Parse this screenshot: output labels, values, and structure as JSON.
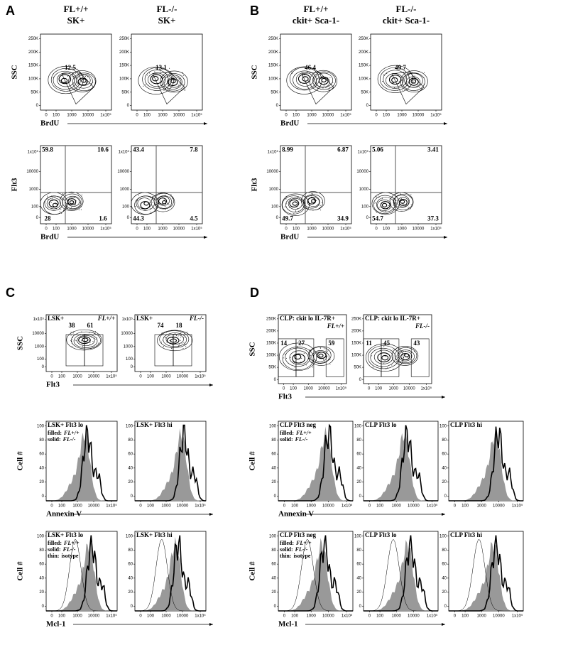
{
  "panels": [
    {
      "label": "A",
      "column_titles": [
        [
          "FL+/+",
          "SK+"
        ],
        [
          "FL-/-",
          "SK+"
        ]
      ],
      "rows": [
        {
          "y_label": "SSC",
          "x_label": "BrdU",
          "yticks": [
            "0",
            "50K",
            "100K",
            "150K",
            "200K",
            "250K"
          ],
          "xticks": [
            "0",
            "100",
            "1000",
            "10000",
            "1x10⁵"
          ],
          "plots": [
            {
              "gates": [
                12.5
              ]
            },
            {
              "gates": [
                13.1
              ]
            }
          ]
        },
        {
          "y_label": "Flt3",
          "x_label": "BrdU",
          "yticks": [
            "0",
            "100",
            "1000",
            "10000",
            "1x10⁵"
          ],
          "xticks": [
            "0",
            "100",
            "1000",
            "10000",
            "1x10⁵"
          ],
          "plots": [
            {
              "gates": [
                59.8,
                10.6,
                28,
                1.6
              ]
            },
            {
              "gates": [
                43.4,
                7.8,
                44.3,
                4.5
              ]
            }
          ]
        }
      ]
    },
    {
      "label": "B",
      "column_titles": [
        [
          "FL+/+",
          "ckit+ Sca-1-"
        ],
        [
          "FL-/-",
          "ckit+ Sca-1-"
        ]
      ],
      "rows": [
        {
          "y_label": "SSC",
          "x_label": "BrdU",
          "yticks": [
            "0",
            "50K",
            "100K",
            "150K",
            "200K",
            "250K"
          ],
          "xticks": [
            "0",
            "100",
            "1000",
            "10000",
            "1x10⁵"
          ],
          "plots": [
            {
              "gates": [
                46.4
              ]
            },
            {
              "gates": [
                49.7
              ]
            }
          ]
        },
        {
          "y_label": "Flt3",
          "x_label": "BrdU",
          "yticks": [
            "0",
            "100",
            "1000",
            "10000",
            "1x10⁵"
          ],
          "xticks": [
            "0",
            "100",
            "1000",
            "10000",
            "1x10⁵"
          ],
          "plots": [
            {
              "gates": [
                8.99,
                6.87,
                49.7,
                34.9
              ]
            },
            {
              "gates": [
                5.06,
                3.41,
                54.7,
                37.3
              ]
            }
          ]
        }
      ]
    },
    {
      "label": "C",
      "rows": [
        {
          "y_label": "SSC",
          "x_label": "Flt3",
          "yticks": [
            "0",
            "100",
            "1000",
            "10000",
            "1x10⁵"
          ],
          "xticks": [
            "0",
            "100",
            "1000",
            "10000",
            "1x10⁵"
          ],
          "plots": [
            {
              "title": "LSK+",
              "genotype": "FL+/+",
              "gates": [
                38,
                61
              ]
            },
            {
              "title": "LSK+",
              "genotype": "FL-/-",
              "gates": [
                74,
                18
              ]
            }
          ]
        },
        {
          "y_label": "Cell #",
          "x_label": "Annexin V",
          "yticks": [
            0,
            20,
            40,
            60,
            80,
            100
          ],
          "xticks": [
            "0",
            "100",
            "1000",
            "10000",
            "1x10⁵"
          ],
          "plots": [
            {
              "title": "LSK+ Flt3 lo",
              "legend": [
                {
                  "key": "filled:",
                  "genotype": "FL+/+"
                },
                {
                  "key": "solid:",
                  "genotype": "FL-/-"
                }
              ]
            },
            {
              "title": "LSK+ Flt3 hi"
            }
          ]
        },
        {
          "y_label": "Cell #",
          "x_label": "Mcl-1",
          "yticks": [
            0,
            20,
            40,
            60,
            80,
            100
          ],
          "xticks": [
            "0",
            "100",
            "1000",
            "10000",
            "1x10⁵"
          ],
          "plots": [
            {
              "title": "LSK+ Flt3 lo",
              "legend": [
                {
                  "key": "filled:",
                  "genotype": "FL+/+"
                },
                {
                  "key": "solid:",
                  "genotype": "FL-/-"
                },
                {
                  "key": "thin:",
                  "genotype": "isotype"
                }
              ]
            },
            {
              "title": "LSK+ Flt3 hi"
            }
          ]
        }
      ]
    },
    {
      "label": "D",
      "rows": [
        {
          "y_label": "SSC",
          "x_label": "Flt3",
          "yticks": [
            "0",
            "50K",
            "100K",
            "150K",
            "200K",
            "250K"
          ],
          "xticks": [
            "0",
            "100",
            "1000",
            "10000",
            "1x10⁵"
          ],
          "plots": [
            {
              "title": "CLP: ckit lo IL-7R+",
              "genotype": "FL+/+",
              "gates": [
                14,
                27,
                59
              ]
            },
            {
              "title": "CLP: ckit lo IL-7R+",
              "genotype": "FL-/-",
              "gates": [
                11,
                45,
                43
              ]
            }
          ]
        },
        {
          "y_label": "Cell #",
          "x_label": "Annexin V",
          "yticks": [
            0,
            20,
            40,
            60,
            80,
            100
          ],
          "xticks": [
            "0",
            "100",
            "1000",
            "10000",
            "1x10⁵"
          ],
          "plots": [
            {
              "title": "CLP Flt3 neg",
              "legend": [
                {
                  "key": "filled:",
                  "genotype": "FL+/+"
                },
                {
                  "key": "solid:",
                  "genotype": "FL-/-"
                }
              ]
            },
            {
              "title": "CLP Flt3 lo"
            },
            {
              "title": "CLP Flt3 hi"
            }
          ]
        },
        {
          "y_label": "Cell #",
          "x_label": "Mcl-1",
          "yticks": [
            0,
            20,
            40,
            60,
            80,
            100
          ],
          "xticks": [
            "0",
            "100",
            "1000",
            "10000",
            "1x10⁵"
          ],
          "plots": [
            {
              "title": "CLP Flt3 neg",
              "legend": [
                {
                  "key": "filled:",
                  "genotype": "FL+/+"
                },
                {
                  "key": "solid:",
                  "genotype": "FL-/-"
                },
                {
                  "key": "thin:",
                  "genotype": "isotype"
                }
              ]
            },
            {
              "title": "CLP Flt3 lo"
            },
            {
              "title": "CLP Flt3 hi"
            }
          ]
        }
      ]
    }
  ]
}
